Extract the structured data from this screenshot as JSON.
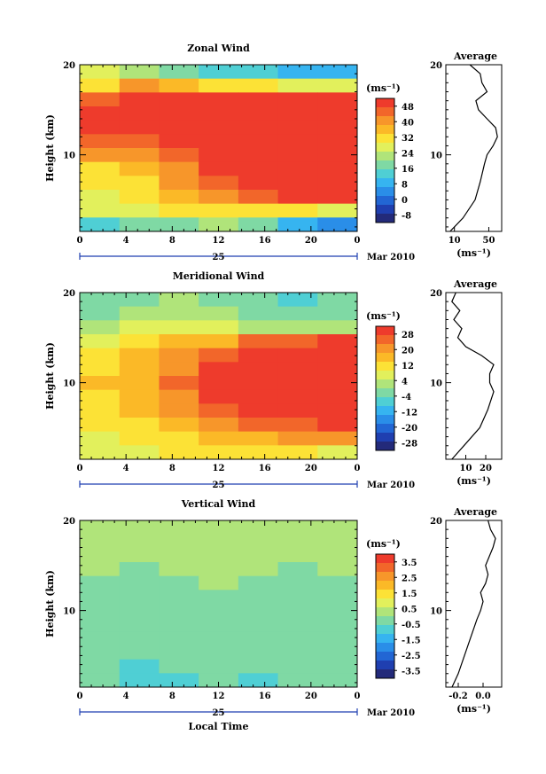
{
  "panels": [
    {
      "title": "Zonal Wind",
      "ylabel": "Height (km)",
      "unit": "(ms⁻¹)",
      "avg_title": "Average",
      "avg_unit": "(ms⁻¹)",
      "yticks": [
        "20",
        "10"
      ],
      "xticks": [
        "0",
        "4",
        "8",
        "12",
        "16",
        "20",
        "0"
      ],
      "day_label": "25",
      "date_label": "Mar 2010",
      "colorbar": {
        "labels": [
          "48",
          "40",
          "32",
          "24",
          "16",
          "8",
          "0",
          "-8"
        ],
        "colors": [
          "#ee3b2c",
          "#f2662a",
          "#f7962a",
          "#fbb927",
          "#fce236",
          "#e2f05c",
          "#b0e47a",
          "#7fd9a4",
          "#4fcfd4",
          "#36b4f0",
          "#2a8ee8",
          "#2266d4",
          "#1f3fb0",
          "#232a7a"
        ]
      },
      "avg_xticks": [
        "10",
        "50"
      ]
    },
    {
      "title": "Meridional Wind",
      "ylabel": "Height (km)",
      "unit": "(ms⁻¹)",
      "avg_title": "Average",
      "avg_unit": "(ms⁻¹)",
      "yticks": [
        "20",
        "10"
      ],
      "xticks": [
        "0",
        "4",
        "8",
        "12",
        "16",
        "20",
        "0"
      ],
      "day_label": "25",
      "date_label": "Mar 2010",
      "colorbar": {
        "labels": [
          "28",
          "20",
          "12",
          "4",
          "-4",
          "-12",
          "-20",
          "-28"
        ],
        "colors": [
          "#ee3b2c",
          "#f2662a",
          "#f7962a",
          "#fbb927",
          "#fce236",
          "#e2f05c",
          "#b0e47a",
          "#7fd9a4",
          "#4fcfd4",
          "#36b4f0",
          "#2a8ee8",
          "#2266d4",
          "#1f3fb0",
          "#232a7a"
        ]
      },
      "avg_xticks": [
        "10",
        "20"
      ]
    },
    {
      "title": "Vertical Wind",
      "ylabel": "Height (km)",
      "unit": "(ms⁻¹)",
      "avg_title": "Average",
      "avg_unit": "(ms⁻¹)",
      "yticks": [
        "20",
        "10"
      ],
      "xticks": [
        "0",
        "4",
        "8",
        "12",
        "16",
        "20",
        "0"
      ],
      "day_label": "25",
      "date_label": "Mar 2010",
      "xlabel": "Local Time",
      "colorbar": {
        "labels": [
          "3.5",
          "2.5",
          "1.5",
          "0.5",
          "-0.5",
          "-1.5",
          "-2.5",
          "-3.5"
        ],
        "colors": [
          "#ee3b2c",
          "#f2662a",
          "#f7962a",
          "#fbb927",
          "#fce236",
          "#e2f05c",
          "#b0e47a",
          "#7fd9a4",
          "#4fcfd4",
          "#36b4f0",
          "#2a8ee8",
          "#2266d4",
          "#1f3fb0",
          "#232a7a"
        ]
      },
      "avg_xticks": [
        "-0.2",
        "0.0"
      ]
    }
  ],
  "chart_data": [
    {
      "type": "heatmap",
      "title": "Zonal Wind",
      "xlabel": "",
      "ylabel": "Height (km)",
      "xlim": [
        0,
        24
      ],
      "ylim": [
        1.5,
        20
      ],
      "clim": [
        -8,
        48
      ],
      "x": [
        0,
        4,
        8,
        12,
        16,
        20,
        24
      ],
      "y": [
        19,
        17.5,
        16,
        14.5,
        13,
        11.5,
        10,
        8.5,
        7,
        5.5,
        4,
        2.5
      ],
      "z": [
        [
          24,
          22,
          18,
          15,
          12,
          10,
          8
        ],
        [
          30,
          36,
          34,
          30,
          28,
          26,
          24
        ],
        [
          40,
          46,
          48,
          46,
          44,
          44,
          44
        ],
        [
          48,
          48,
          48,
          48,
          48,
          48,
          48
        ],
        [
          46,
          48,
          48,
          48,
          48,
          48,
          48
        ],
        [
          40,
          42,
          46,
          48,
          48,
          48,
          48
        ],
        [
          36,
          38,
          42,
          48,
          48,
          48,
          48
        ],
        [
          30,
          34,
          38,
          46,
          48,
          48,
          48
        ],
        [
          28,
          30,
          36,
          42,
          46,
          48,
          48
        ],
        [
          26,
          30,
          32,
          36,
          40,
          44,
          46
        ],
        [
          24,
          26,
          28,
          30,
          30,
          28,
          26
        ],
        [
          14,
          16,
          18,
          20,
          16,
          10,
          6
        ]
      ],
      "average": {
        "xlim": [
          0,
          65
        ],
        "height": [
          1.5,
          3,
          5,
          7,
          9,
          10,
          11,
          12,
          13,
          14,
          15,
          16,
          17,
          18,
          19,
          20
        ],
        "value": [
          5,
          20,
          34,
          40,
          45,
          48,
          55,
          60,
          58,
          48,
          38,
          35,
          48,
          42,
          40,
          28
        ]
      }
    },
    {
      "type": "heatmap",
      "title": "Meridional Wind",
      "xlabel": "",
      "ylabel": "Height (km)",
      "xlim": [
        0,
        24
      ],
      "ylim": [
        1.5,
        20
      ],
      "clim": [
        -28,
        28
      ],
      "x": [
        0,
        4,
        8,
        12,
        16,
        20,
        24
      ],
      "y": [
        19,
        17.5,
        16,
        14.5,
        13,
        11.5,
        10,
        8.5,
        7,
        5.5,
        4,
        2.5
      ],
      "z": [
        [
          -4,
          -2,
          0,
          -2,
          -4,
          -6,
          -4
        ],
        [
          -2,
          0,
          2,
          0,
          -2,
          -4,
          -4
        ],
        [
          0,
          4,
          6,
          4,
          2,
          0,
          0
        ],
        [
          4,
          8,
          12,
          14,
          20,
          22,
          24
        ],
        [
          8,
          12,
          16,
          22,
          26,
          28,
          28
        ],
        [
          10,
          14,
          18,
          24,
          28,
          28,
          28
        ],
        [
          12,
          14,
          20,
          26,
          28,
          28,
          28
        ],
        [
          10,
          14,
          18,
          24,
          28,
          28,
          28
        ],
        [
          8,
          12,
          16,
          20,
          26,
          28,
          28
        ],
        [
          8,
          10,
          14,
          16,
          20,
          22,
          24
        ],
        [
          6,
          8,
          10,
          12,
          14,
          16,
          16
        ],
        [
          4,
          6,
          8,
          10,
          10,
          8,
          6
        ]
      ],
      "average": {
        "xlim": [
          0,
          28
        ],
        "height": [
          1.5,
          3,
          5,
          7,
          9,
          10,
          11,
          12,
          13,
          14,
          15,
          16,
          17,
          18,
          19,
          20
        ],
        "value": [
          3,
          9,
          17,
          21,
          24,
          22,
          22,
          24,
          18,
          10,
          6,
          8,
          4,
          7,
          3,
          5
        ]
      }
    },
    {
      "type": "heatmap",
      "title": "Vertical Wind",
      "xlabel": "Local Time",
      "ylabel": "Height (km)",
      "xlim": [
        0,
        24
      ],
      "ylim": [
        1.5,
        20
      ],
      "clim": [
        -3.5,
        3.5
      ],
      "x": [
        0,
        4,
        8,
        12,
        16,
        20,
        24
      ],
      "y": [
        19,
        17.5,
        16,
        14.5,
        13,
        11.5,
        10,
        8.5,
        7,
        5.5,
        4,
        2.5
      ],
      "z": [
        [
          0.3,
          0.2,
          0.3,
          0.2,
          0.3,
          0.3,
          0.2
        ],
        [
          0.2,
          0.3,
          0.2,
          0.3,
          0.2,
          0.2,
          0.3
        ],
        [
          0.0,
          0.1,
          0.2,
          0.1,
          0.0,
          0.1,
          0.2
        ],
        [
          0.0,
          -0.1,
          0.0,
          0.1,
          0.0,
          -0.1,
          0.0
        ],
        [
          -0.1,
          -0.2,
          -0.1,
          0.0,
          -0.1,
          -0.2,
          -0.1
        ],
        [
          -0.2,
          -0.3,
          -0.2,
          -0.1,
          -0.2,
          -0.3,
          -0.2
        ],
        [
          -0.2,
          -0.2,
          -0.3,
          -0.2,
          -0.1,
          -0.2,
          -0.3
        ],
        [
          -0.3,
          -0.2,
          -0.3,
          -0.3,
          -0.2,
          -0.3,
          -0.2
        ],
        [
          -0.2,
          -0.3,
          -0.2,
          -0.3,
          -0.3,
          -0.2,
          -0.3
        ],
        [
          -0.3,
          -0.4,
          -0.3,
          -0.2,
          -0.3,
          -0.4,
          -0.3
        ],
        [
          -0.4,
          -0.6,
          -0.4,
          -0.3,
          -0.5,
          -0.4,
          -0.4
        ],
        [
          -0.5,
          -0.9,
          -0.6,
          -0.4,
          -0.6,
          -0.5,
          -0.5
        ]
      ],
      "average": {
        "xlim": [
          -0.3,
          0.15
        ],
        "height": [
          1.5,
          3,
          5,
          7,
          9,
          10,
          11,
          12,
          13,
          14,
          15,
          16,
          17,
          18,
          19,
          20
        ],
        "value": [
          -0.25,
          -0.2,
          -0.15,
          -0.1,
          -0.05,
          -0.02,
          0.0,
          -0.02,
          0.02,
          0.04,
          0.02,
          0.05,
          0.08,
          0.1,
          0.06,
          0.04
        ]
      }
    }
  ]
}
